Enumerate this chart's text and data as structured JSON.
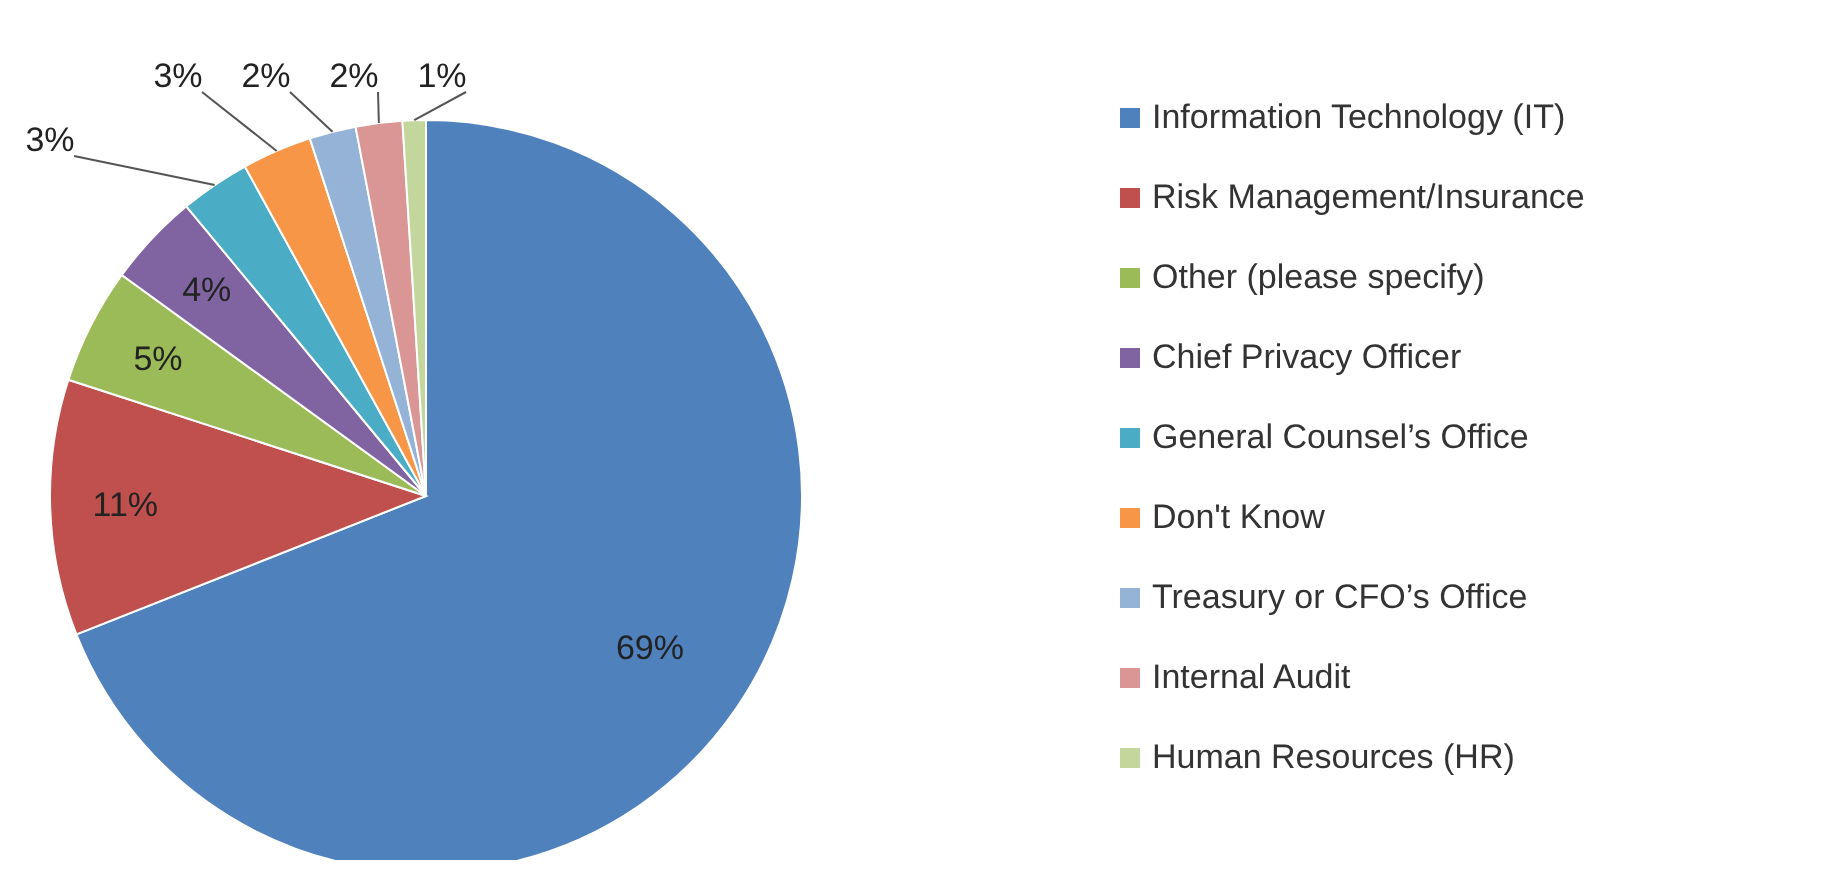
{
  "chart_data": {
    "type": "pie",
    "categories": [
      "Information Technology (IT)",
      "Risk Management/Insurance",
      "Other (please specify)",
      "Chief Privacy Officer",
      "General Counsel’s Office",
      "Don't Know",
      "Treasury or CFO’s Office",
      "Internal Audit",
      "Human Resources (HR)"
    ],
    "values": [
      69,
      11,
      5,
      4,
      3,
      3,
      2,
      2,
      1
    ],
    "colors": [
      "#4f81bd",
      "#c0504d",
      "#9bbb59",
      "#8064a2",
      "#4bacc6",
      "#f79646",
      "#95b3d7",
      "#d99694",
      "#c3d69b"
    ],
    "value_labels": [
      "69%",
      "11%",
      "5%",
      "4%",
      "3%",
      "3%",
      "2%",
      "2%",
      "1%"
    ],
    "legend": "right"
  }
}
